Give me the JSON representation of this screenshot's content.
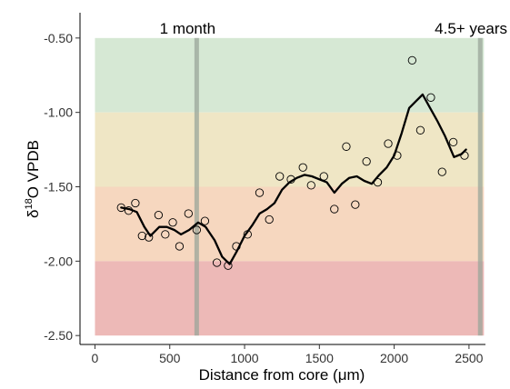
{
  "chart_data": {
    "type": "scatter",
    "xlabel": "Distance from core (μm)",
    "ylabel_prefix": "δ",
    "ylabel_sup": "18",
    "ylabel_suffix": "O VPDB",
    "xlim": [
      -100,
      2610
    ],
    "ylim": [
      -2.56,
      -0.33
    ],
    "x_ticks": [
      0,
      500,
      1000,
      1500,
      2000,
      2500
    ],
    "x_tick_labels": [
      "0",
      "500",
      "1000",
      "1500",
      "2000",
      "2500"
    ],
    "y_ticks": [
      -0.5,
      -1.0,
      -1.5,
      -2.0,
      -2.5
    ],
    "y_tick_labels": [
      "-0.50",
      "-1.00",
      "-1.50",
      "-2.00",
      "-2.50"
    ],
    "grid": false,
    "bands": [
      {
        "y_from": -1.0,
        "y_to": -0.5,
        "x_from": 0,
        "x_to": 2600,
        "color": "#d6e8d4"
      },
      {
        "y_from": -1.5,
        "y_to": -1.0,
        "x_from": 0,
        "x_to": 2600,
        "color": "#efe6c5"
      },
      {
        "y_from": -2.0,
        "y_to": -1.5,
        "x_from": 0,
        "x_to": 2600,
        "color": "#f6d7bf"
      },
      {
        "y_from": -2.5,
        "y_to": -2.0,
        "x_from": 0,
        "x_to": 2600,
        "color": "#edb9b7"
      }
    ],
    "vlines": [
      {
        "x": 680,
        "color": "#9aa59a"
      },
      {
        "x": 2575,
        "color": "#9aa59a"
      }
    ],
    "annotations": [
      {
        "text": "1 month",
        "x": 680
      },
      {
        "text": "4.5+ years",
        "x": 2575
      }
    ],
    "points": [
      {
        "x": 175,
        "y": -1.64
      },
      {
        "x": 225,
        "y": -1.66
      },
      {
        "x": 270,
        "y": -1.61
      },
      {
        "x": 315,
        "y": -1.83
      },
      {
        "x": 360,
        "y": -1.84
      },
      {
        "x": 425,
        "y": -1.69
      },
      {
        "x": 470,
        "y": -1.82
      },
      {
        "x": 520,
        "y": -1.74
      },
      {
        "x": 565,
        "y": -1.9
      },
      {
        "x": 625,
        "y": -1.68
      },
      {
        "x": 680,
        "y": -1.79
      },
      {
        "x": 735,
        "y": -1.73
      },
      {
        "x": 815,
        "y": -2.01
      },
      {
        "x": 890,
        "y": -2.03
      },
      {
        "x": 945,
        "y": -1.9
      },
      {
        "x": 1020,
        "y": -1.82
      },
      {
        "x": 1100,
        "y": -1.54
      },
      {
        "x": 1165,
        "y": -1.72
      },
      {
        "x": 1235,
        "y": -1.43
      },
      {
        "x": 1310,
        "y": -1.45
      },
      {
        "x": 1390,
        "y": -1.37
      },
      {
        "x": 1445,
        "y": -1.49
      },
      {
        "x": 1530,
        "y": -1.43
      },
      {
        "x": 1600,
        "y": -1.65
      },
      {
        "x": 1680,
        "y": -1.23
      },
      {
        "x": 1740,
        "y": -1.62
      },
      {
        "x": 1815,
        "y": -1.33
      },
      {
        "x": 1890,
        "y": -1.47
      },
      {
        "x": 1960,
        "y": -1.21
      },
      {
        "x": 2020,
        "y": -1.29
      },
      {
        "x": 2120,
        "y": -0.65
      },
      {
        "x": 2175,
        "y": -1.12
      },
      {
        "x": 2245,
        "y": -0.9
      },
      {
        "x": 2320,
        "y": -1.4
      },
      {
        "x": 2395,
        "y": -1.2
      },
      {
        "x": 2470,
        "y": -1.29
      }
    ],
    "trend": {
      "x": [
        175,
        230,
        280,
        330,
        370,
        430,
        480,
        530,
        575,
        630,
        690,
        740,
        800,
        850,
        900,
        950,
        1000,
        1050,
        1100,
        1150,
        1200,
        1250,
        1300,
        1350,
        1400,
        1450,
        1500,
        1550,
        1600,
        1650,
        1700,
        1750,
        1800,
        1850,
        1900,
        1950,
        2000,
        2050,
        2100,
        2150,
        2190,
        2240,
        2290,
        2340,
        2400,
        2450,
        2480
      ],
      "y": [
        -1.64,
        -1.65,
        -1.67,
        -1.77,
        -1.83,
        -1.77,
        -1.77,
        -1.79,
        -1.82,
        -1.79,
        -1.74,
        -1.77,
        -1.86,
        -1.97,
        -2.02,
        -1.93,
        -1.83,
        -1.76,
        -1.68,
        -1.65,
        -1.61,
        -1.52,
        -1.47,
        -1.44,
        -1.42,
        -1.43,
        -1.45,
        -1.47,
        -1.54,
        -1.48,
        -1.44,
        -1.43,
        -1.46,
        -1.48,
        -1.42,
        -1.37,
        -1.29,
        -1.14,
        -0.97,
        -0.92,
        -0.88,
        -0.97,
        -1.06,
        -1.16,
        -1.3,
        -1.28,
        -1.25
      ]
    }
  }
}
